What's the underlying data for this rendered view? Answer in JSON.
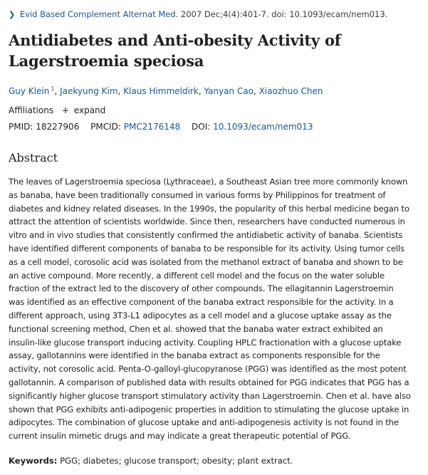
{
  "citation": {
    "journal": "Evid Based Complement Alternat Med.",
    "details": "2007 Dec;4(4):401-7. doi: 10.1093/ecam/nem013."
  },
  "article": {
    "title": "Antidiabetes and Anti-obesity Activity of Lagerstroemia speciosa"
  },
  "authors": [
    {
      "name": "Guy Klein",
      "sup": "1"
    },
    {
      "name": "Jaekyung Kim"
    },
    {
      "name": "Klaus Himmeldirk"
    },
    {
      "name": "Yanyan Cao"
    },
    {
      "name": "Xiaozhuo Chen"
    }
  ],
  "affiliations": {
    "label": "Affiliations",
    "expand": "expand"
  },
  "ids": {
    "pmid_label": "PMID:",
    "pmid": "18227906",
    "pmcid_label": "PMCID:",
    "pmcid": "PMC2176148",
    "doi_label": "DOI:",
    "doi": "10.1093/ecam/nem013"
  },
  "abstract": {
    "heading": "Abstract",
    "text": "The leaves of Lagerstroemia speciosa (Lythraceae), a Southeast Asian tree more commonly known as banaba, have been traditionally consumed in various forms by Philippinos for treatment of diabetes and kidney related diseases. In the 1990s, the popularity of this herbal medicine began to attract the attention of scientists worldwide. Since then, researchers have conducted numerous in vitro and in vivo studies that consistently confirmed the antidiabetic activity of banaba. Scientists have identified different components of banaba to be responsible for its activity. Using tumor cells as a cell model, corosolic acid was isolated from the methanol extract of banaba and shown to be an active compound. More recently, a different cell model and the focus on the water soluble fraction of the extract led to the discovery of other compounds. The ellagitannin Lagerstroemin was identified as an effective component of the banaba extract responsible for the activity. In a different approach, using 3T3-L1 adipocytes as a cell model and a glucose uptake assay as the functional screening method, Chen et al. showed that the banaba water extract exhibited an insulin-like glucose transport inducing activity. Coupling HPLC fractionation with a glucose uptake assay, gallotannins were identified in the banaba extract as components responsible for the activity, not corosolic acid. Penta-O-galloyl-glucopyranose (PGG) was identified as the most potent gallotannin. A comparison of published data with results obtained for PGG indicates that PGG has a significantly higher glucose transport stimulatory activity than Lagerstroemin. Chen et al. have also shown that PGG exhibits anti-adipogenic properties in addition to stimulating the glucose uptake in adipocytes. The combination of glucose uptake and anti-adipogenesis activity is not found in the current insulin mimetic drugs and may indicate a great therapeutic potential of PGG."
  },
  "keywords": {
    "label": "Keywords:",
    "text": "PGG; diabetes; glucose transport; obesity; plant extract."
  }
}
